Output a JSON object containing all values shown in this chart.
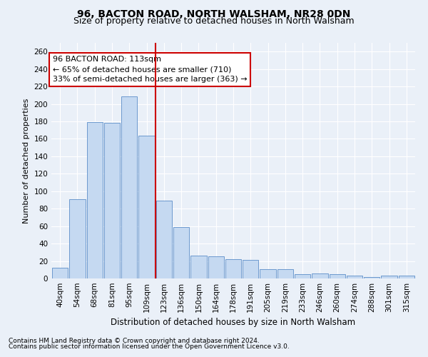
{
  "title1": "96, BACTON ROAD, NORTH WALSHAM, NR28 0DN",
  "title2": "Size of property relative to detached houses in North Walsham",
  "xlabel": "Distribution of detached houses by size in North Walsham",
  "ylabel": "Number of detached properties",
  "categories": [
    "40sqm",
    "54sqm",
    "68sqm",
    "81sqm",
    "95sqm",
    "109sqm",
    "123sqm",
    "136sqm",
    "150sqm",
    "164sqm",
    "178sqm",
    "191sqm",
    "205sqm",
    "219sqm",
    "233sqm",
    "246sqm",
    "260sqm",
    "274sqm",
    "288sqm",
    "301sqm",
    "315sqm"
  ],
  "values": [
    12,
    91,
    179,
    178,
    209,
    164,
    89,
    59,
    26,
    25,
    22,
    21,
    11,
    11,
    5,
    6,
    5,
    3,
    2,
    3,
    3
  ],
  "bar_color": "#c5d9f1",
  "bar_edge_color": "#5b8dc8",
  "vline_x": 5.5,
  "vline_color": "#cc0000",
  "annotation_line1": "96 BACTON ROAD: 113sqm",
  "annotation_line2": "← 65% of detached houses are smaller (710)",
  "annotation_line3": "33% of semi-detached houses are larger (363) →",
  "annotation_box_color": "#ffffff",
  "annotation_box_edge": "#cc0000",
  "ylim": [
    0,
    270
  ],
  "yticks": [
    0,
    20,
    40,
    60,
    80,
    100,
    120,
    140,
    160,
    180,
    200,
    220,
    240,
    260
  ],
  "footer1": "Contains HM Land Registry data © Crown copyright and database right 2024.",
  "footer2": "Contains public sector information licensed under the Open Government Licence v3.0.",
  "bg_color": "#eaf0f8",
  "grid_color": "#ffffff",
  "title1_fontsize": 10,
  "title2_fontsize": 9,
  "xlabel_fontsize": 8.5,
  "ylabel_fontsize": 8,
  "tick_fontsize": 7.5,
  "annotation_fontsize": 8,
  "footer_fontsize": 6.5
}
